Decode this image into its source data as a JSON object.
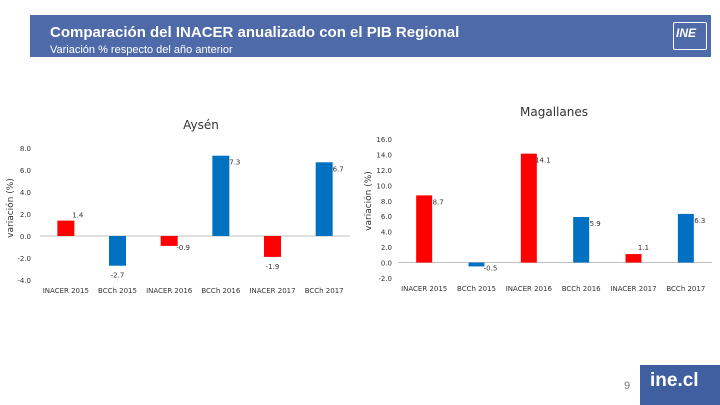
{
  "header": {
    "title": "Comparación del INACER anualizado con el PIB Regional",
    "subtitle": "Variación % respecto del año anterior",
    "logo_text": "INE"
  },
  "footer": {
    "brand": "ine.cl",
    "page_number": "9"
  },
  "colors": {
    "red": "#ff0000",
    "blue": "#0070c0",
    "header_bg": "#4f6aa8"
  },
  "chart_data": [
    {
      "type": "bar",
      "title": "Aysén",
      "ylabel": "variación (%)",
      "xlabel": "",
      "categories": [
        "INACER 2015",
        "BCCh 2015",
        "INACER 2016",
        "BCCh 2016",
        "INACER 2017",
        "BCCh 2017"
      ],
      "values": [
        1.4,
        -2.7,
        -0.9,
        7.3,
        -1.9,
        6.7
      ],
      "value_labels": [
        "1.4",
        "-2.7",
        "-0.9",
        "7.3",
        "-1.9",
        "6.7"
      ],
      "bar_colors": [
        "#ff0000",
        "#0070c0",
        "#ff0000",
        "#0070c0",
        "#ff0000",
        "#0070c0"
      ],
      "ylim": [
        -4.0,
        8.0
      ],
      "yticks": [
        -4.0,
        -2.0,
        0.0,
        2.0,
        4.0,
        6.0,
        8.0
      ],
      "ytick_labels": [
        "-4.0",
        "-2.0",
        "0.0",
        "2.0",
        "4.0",
        "6.0",
        "8.0"
      ],
      "grid": false
    },
    {
      "type": "bar",
      "title": "Magallanes",
      "ylabel": "variación (%)",
      "xlabel": "",
      "categories": [
        "INACER 2015",
        "BCCh 2015",
        "INACER 2016",
        "BCCh 2016",
        "INACER 2017",
        "BCCh 2017"
      ],
      "values": [
        8.7,
        -0.5,
        14.1,
        5.9,
        1.1,
        6.3
      ],
      "value_labels": [
        "8.7",
        "-0.5",
        "14.1",
        "5.9",
        "1.1",
        "6.3"
      ],
      "bar_colors": [
        "#ff0000",
        "#0070c0",
        "#ff0000",
        "#0070c0",
        "#ff0000",
        "#0070c0"
      ],
      "ylim": [
        -2.0,
        16.0
      ],
      "yticks": [
        -2.0,
        0.0,
        2.0,
        4.0,
        6.0,
        8.0,
        10.0,
        12.0,
        14.0,
        16.0
      ],
      "ytick_labels": [
        "-2.0",
        "0.0",
        "2.0",
        "4.0",
        "6.0",
        "8.0",
        "10.0",
        "12.0",
        "14.0",
        "16.0"
      ],
      "grid": false
    }
  ]
}
